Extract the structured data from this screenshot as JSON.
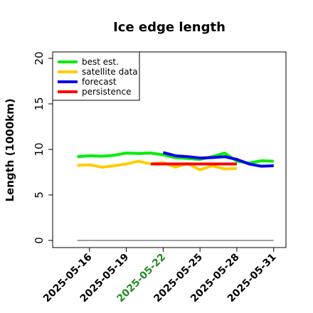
{
  "chart_data": {
    "type": "line",
    "title": "Ice edge length",
    "xlabel": "",
    "ylabel": "Length (1000km)",
    "ylim": [
      0,
      20
    ],
    "yticks": [
      0,
      5,
      10,
      15,
      20
    ],
    "xlim": [
      "2025-05-13",
      "2025-06-01"
    ],
    "xticks": [
      {
        "label": "2025-05-16",
        "date": "2025-05-16",
        "color": "#000000"
      },
      {
        "label": "2025-05-19",
        "date": "2025-05-19",
        "color": "#000000"
      },
      {
        "label": "2025-05-22",
        "date": "2025-05-22",
        "color": "#228b22"
      },
      {
        "label": "2025-05-25",
        "date": "2025-05-25",
        "color": "#000000"
      },
      {
        "label": "2025-05-28",
        "date": "2025-05-28",
        "color": "#000000"
      },
      {
        "label": "2025-05-31",
        "date": "2025-05-31",
        "color": "#000000"
      }
    ],
    "grid": false,
    "legend_position": "top-left",
    "reference_line": {
      "y": 0,
      "x_start": "2025-05-15",
      "x_end": "2025-05-31",
      "color": "#808080"
    },
    "series": [
      {
        "name": "best est.",
        "color": "#00ee00",
        "x": [
          "2025-05-15",
          "2025-05-16",
          "2025-05-17",
          "2025-05-18",
          "2025-05-19",
          "2025-05-20",
          "2025-05-21",
          "2025-05-22",
          "2025-05-23",
          "2025-05-24",
          "2025-05-25",
          "2025-05-26",
          "2025-05-27",
          "2025-05-28",
          "2025-05-29",
          "2025-05-30",
          "2025-05-31"
        ],
        "y": [
          9.2,
          9.3,
          9.25,
          9.35,
          9.6,
          9.55,
          9.6,
          9.4,
          9.1,
          9.0,
          8.9,
          9.2,
          9.6,
          8.7,
          8.5,
          8.75,
          8.7
        ]
      },
      {
        "name": "satellite data",
        "color": "#ffcc00",
        "x": [
          "2025-05-15",
          "2025-05-16",
          "2025-05-17",
          "2025-05-18",
          "2025-05-19",
          "2025-05-20",
          "2025-05-21",
          "2025-05-22",
          "2025-05-23",
          "2025-05-24",
          "2025-05-25",
          "2025-05-26",
          "2025-05-27",
          "2025-05-28"
        ],
        "y": [
          8.25,
          8.3,
          8.05,
          8.2,
          8.4,
          8.7,
          8.4,
          8.55,
          8.05,
          8.45,
          7.75,
          8.2,
          7.85,
          7.9
        ]
      },
      {
        "name": "forecast",
        "color": "#0000ee",
        "x": [
          "2025-05-22",
          "2025-05-23",
          "2025-05-24",
          "2025-05-25",
          "2025-05-26",
          "2025-05-27",
          "2025-05-28",
          "2025-05-29",
          "2025-05-30",
          "2025-05-31"
        ],
        "y": [
          9.65,
          9.3,
          9.2,
          9.05,
          9.1,
          9.2,
          8.9,
          8.4,
          8.15,
          8.2
        ]
      },
      {
        "name": "persistence",
        "color": "#ff0000",
        "x": [
          "2025-05-21",
          "2025-05-22",
          "2025-05-23",
          "2025-05-24",
          "2025-05-25",
          "2025-05-26",
          "2025-05-27",
          "2025-05-28"
        ],
        "y": [
          8.4,
          8.4,
          8.4,
          8.4,
          8.4,
          8.4,
          8.4,
          8.4
        ]
      }
    ]
  }
}
